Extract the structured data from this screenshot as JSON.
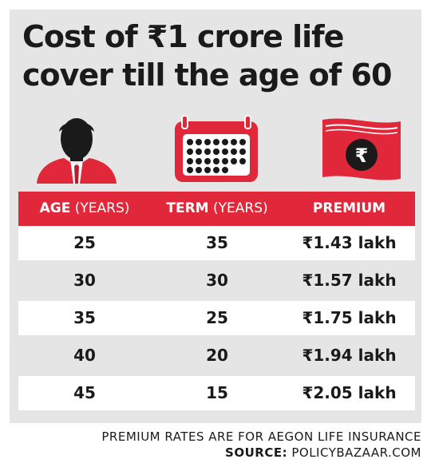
{
  "title": {
    "line1": "Cost of ₹1 crore life",
    "line2": "cover till the age of 60"
  },
  "icons": [
    "person-icon",
    "calendar-icon",
    "rupee-money-icon"
  ],
  "colors": {
    "accent": "#e0283a",
    "panel": "#e5e5e5",
    "text": "#1a1a1a"
  },
  "chart_data": {
    "type": "table",
    "columns": [
      {
        "bold": "AGE",
        "light": " (YEARS)"
      },
      {
        "bold": "TERM",
        "light": " (YEARS)"
      },
      {
        "bold": "PREMIUM",
        "light": ""
      }
    ],
    "rows": [
      {
        "age": "25",
        "term": "35",
        "premium": "₹1.43 lakh"
      },
      {
        "age": "30",
        "term": "30",
        "premium": "₹1.57 lakh"
      },
      {
        "age": "35",
        "term": "25",
        "premium": "₹1.75 lakh"
      },
      {
        "age": "40",
        "term": "20",
        "premium": "₹1.94 lakh"
      },
      {
        "age": "45",
        "term": "15",
        "premium": "₹2.05 lakh"
      }
    ]
  },
  "footer": {
    "note": "PREMIUM RATES ARE FOR AEGON LIFE INSURANCE",
    "source_label": "SOURCE:",
    "source_value": " POLICYBAZAAR.COM"
  }
}
